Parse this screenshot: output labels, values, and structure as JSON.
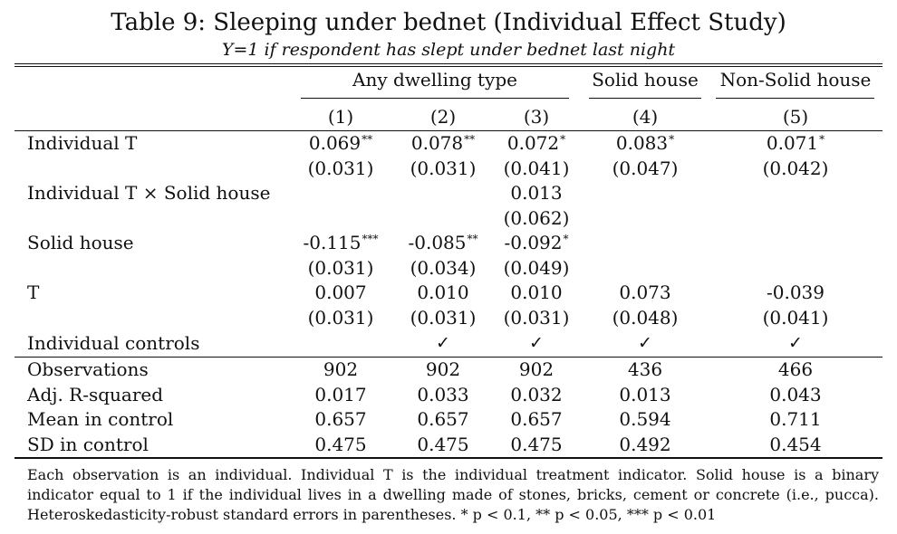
{
  "title": "Table 9: Sleeping under bednet (Individual Effect Study)",
  "subtitle": "Y=1 if respondent has slept under bednet last night",
  "group_headers": [
    "Any dwelling type",
    "Solid house",
    "Non-Solid house"
  ],
  "column_numbers": [
    "(1)",
    "(2)",
    "(3)",
    "(4)",
    "(5)"
  ],
  "rows": [
    {
      "label": "Individual T",
      "coef": [
        "0.069",
        "0.078",
        "0.072",
        "0.083",
        "0.071"
      ],
      "stars": [
        "**",
        "**",
        "*",
        "*",
        "*"
      ],
      "se": [
        "(0.031)",
        "(0.031)",
        "(0.041)",
        "(0.047)",
        "(0.042)"
      ]
    },
    {
      "label": "Individual T × Solid house",
      "coef": [
        "",
        "",
        "0.013",
        "",
        ""
      ],
      "stars": [
        "",
        "",
        "",
        "",
        ""
      ],
      "se": [
        "",
        "",
        "(0.062)",
        "",
        ""
      ]
    },
    {
      "label": "Solid house",
      "coef": [
        "-0.115",
        "-0.085",
        "-0.092",
        "",
        ""
      ],
      "stars": [
        "***",
        "**",
        "*",
        "",
        ""
      ],
      "se": [
        "(0.031)",
        "(0.034)",
        "(0.049)",
        "",
        ""
      ]
    },
    {
      "label": "T",
      "coef": [
        "0.007",
        "0.010",
        "0.010",
        "0.073",
        "-0.039"
      ],
      "stars": [
        "",
        "",
        "",
        "",
        ""
      ],
      "se": [
        "(0.031)",
        "(0.031)",
        "(0.031)",
        "(0.048)",
        "(0.041)"
      ]
    }
  ],
  "controls": {
    "label": "Individual controls",
    "marks": [
      "",
      "✓",
      "✓",
      "✓",
      "✓"
    ]
  },
  "stats": [
    {
      "label": "Observations",
      "values": [
        "902",
        "902",
        "902",
        "436",
        "466"
      ]
    },
    {
      "label": "Adj. R-squared",
      "values": [
        "0.017",
        "0.033",
        "0.032",
        "0.013",
        "0.043"
      ]
    },
    {
      "label": "Mean in control",
      "values": [
        "0.657",
        "0.657",
        "0.657",
        "0.594",
        "0.711"
      ]
    },
    {
      "label": "SD in control",
      "values": [
        "0.475",
        "0.475",
        "0.475",
        "0.492",
        "0.454"
      ]
    }
  ],
  "note": "Each observation is an individual. Individual T is the individual treatment indicator. Solid house is a binary indicator equal to 1 if the individual lives in a dwelling made of stones, bricks, cement or concrete (i.e., pucca). Heteroskedasticity-robust standard errors in parentheses. * p < 0.1, ** p < 0.05, *** p < 0.01"
}
